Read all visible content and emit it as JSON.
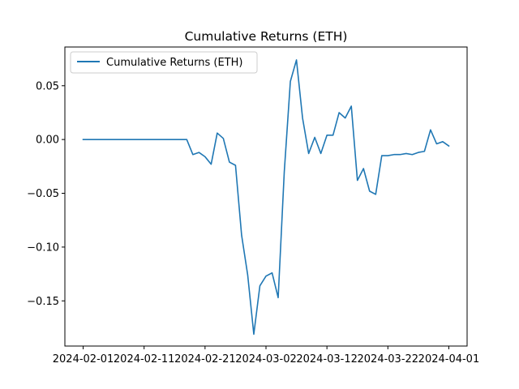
{
  "chart_data": {
    "type": "line",
    "title": "Cumulative Returns (ETH)",
    "xlabel": "",
    "ylabel": "",
    "x_ticks": [
      "2024-02-01",
      "2024-02-11",
      "2024-02-21",
      "2024-03-02",
      "2024-03-12",
      "2024-03-22",
      "2024-04-01"
    ],
    "y_ticks": [
      "0.05",
      "0.00",
      "−0.05",
      "−0.10",
      "−0.15"
    ],
    "x_range": [
      "2024-01-29",
      "2024-04-04"
    ],
    "ylim": [
      -0.192,
      0.086
    ],
    "legend": {
      "placement": "top-left",
      "entries": [
        "Cumulative Returns (ETH)"
      ]
    },
    "grid": false,
    "series": [
      {
        "name": "Cumulative Returns (ETH)",
        "color": "#1f77b4",
        "points": [
          [
            "2024-02-01",
            0.0
          ],
          [
            "2024-02-02",
            0.0
          ],
          [
            "2024-02-03",
            0.0
          ],
          [
            "2024-02-04",
            0.0
          ],
          [
            "2024-02-05",
            0.0
          ],
          [
            "2024-02-06",
            0.0
          ],
          [
            "2024-02-07",
            0.0
          ],
          [
            "2024-02-08",
            0.0
          ],
          [
            "2024-02-09",
            0.0
          ],
          [
            "2024-02-10",
            0.0
          ],
          [
            "2024-02-11",
            0.0
          ],
          [
            "2024-02-12",
            0.0
          ],
          [
            "2024-02-13",
            0.0
          ],
          [
            "2024-02-14",
            0.0
          ],
          [
            "2024-02-15",
            0.0
          ],
          [
            "2024-02-16",
            0.0
          ],
          [
            "2024-02-17",
            0.0
          ],
          [
            "2024-02-18",
            0.0
          ],
          [
            "2024-02-19",
            -0.014
          ],
          [
            "2024-02-20",
            -0.012
          ],
          [
            "2024-02-21",
            -0.016
          ],
          [
            "2024-02-22",
            -0.023
          ],
          [
            "2024-02-23",
            0.006
          ],
          [
            "2024-02-24",
            0.001
          ],
          [
            "2024-02-25",
            -0.021
          ],
          [
            "2024-02-26",
            -0.024
          ],
          [
            "2024-02-27",
            -0.089
          ],
          [
            "2024-02-28",
            -0.126
          ],
          [
            "2024-02-29",
            -0.181
          ],
          [
            "2024-03-01",
            -0.136
          ],
          [
            "2024-03-02",
            -0.127
          ],
          [
            "2024-03-03",
            -0.124
          ],
          [
            "2024-03-04",
            -0.147
          ],
          [
            "2024-03-05",
            -0.03
          ],
          [
            "2024-03-06",
            0.054
          ],
          [
            "2024-03-07",
            0.074
          ],
          [
            "2024-03-08",
            0.02
          ],
          [
            "2024-03-09",
            -0.013
          ],
          [
            "2024-03-10",
            0.002
          ],
          [
            "2024-03-11",
            -0.013
          ],
          [
            "2024-03-12",
            0.004
          ],
          [
            "2024-03-13",
            0.004
          ],
          [
            "2024-03-14",
            0.025
          ],
          [
            "2024-03-15",
            0.02
          ],
          [
            "2024-03-16",
            0.031
          ],
          [
            "2024-03-17",
            -0.038
          ],
          [
            "2024-03-18",
            -0.027
          ],
          [
            "2024-03-19",
            -0.048
          ],
          [
            "2024-03-20",
            -0.051
          ],
          [
            "2024-03-21",
            -0.015
          ],
          [
            "2024-03-22",
            -0.015
          ],
          [
            "2024-03-23",
            -0.014
          ],
          [
            "2024-03-24",
            -0.014
          ],
          [
            "2024-03-25",
            -0.013
          ],
          [
            "2024-03-26",
            -0.014
          ],
          [
            "2024-03-27",
            -0.012
          ],
          [
            "2024-03-28",
            -0.011
          ],
          [
            "2024-03-29",
            0.009
          ],
          [
            "2024-03-30",
            -0.004
          ],
          [
            "2024-03-31",
            -0.002
          ],
          [
            "2024-04-01",
            -0.006
          ]
        ]
      }
    ]
  }
}
